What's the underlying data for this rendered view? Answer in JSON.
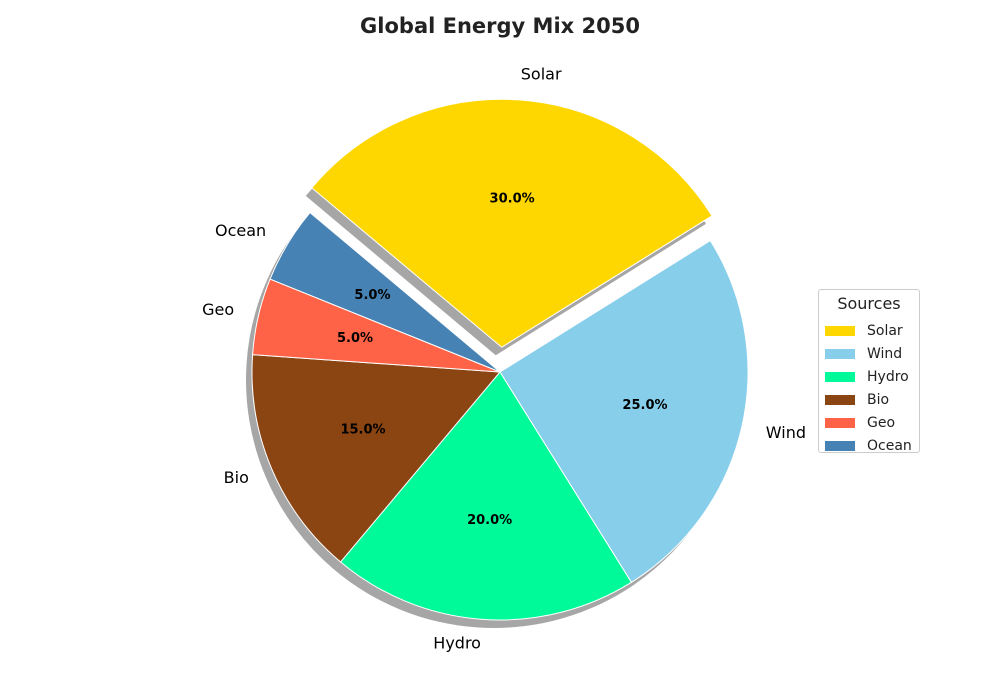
{
  "chart_data": {
    "type": "pie",
    "title": "Global Energy Mix 2050",
    "slices": [
      {
        "label": "Solar",
        "value": 30.0,
        "pct_label": "30.0%",
        "color": "#FFD700",
        "exploded": true
      },
      {
        "label": "Wind",
        "value": 25.0,
        "pct_label": "25.0%",
        "color": "#87CEEB",
        "exploded": false
      },
      {
        "label": "Hydro",
        "value": 20.0,
        "pct_label": "20.0%",
        "color": "#00FA9A",
        "exploded": false
      },
      {
        "label": "Bio",
        "value": 15.0,
        "pct_label": "15.0%",
        "color": "#8B4513",
        "exploded": false
      },
      {
        "label": "Geo",
        "value": 5.0,
        "pct_label": "5.0%",
        "color": "#FF6347",
        "exploded": false
      },
      {
        "label": "Ocean",
        "value": 5.0,
        "pct_label": "5.0%",
        "color": "#4682B4",
        "exploded": false
      }
    ],
    "start_angle_deg": 140,
    "direction": "clockwise",
    "shadow": true,
    "legend": {
      "title": "Sources",
      "placement": "right"
    }
  }
}
